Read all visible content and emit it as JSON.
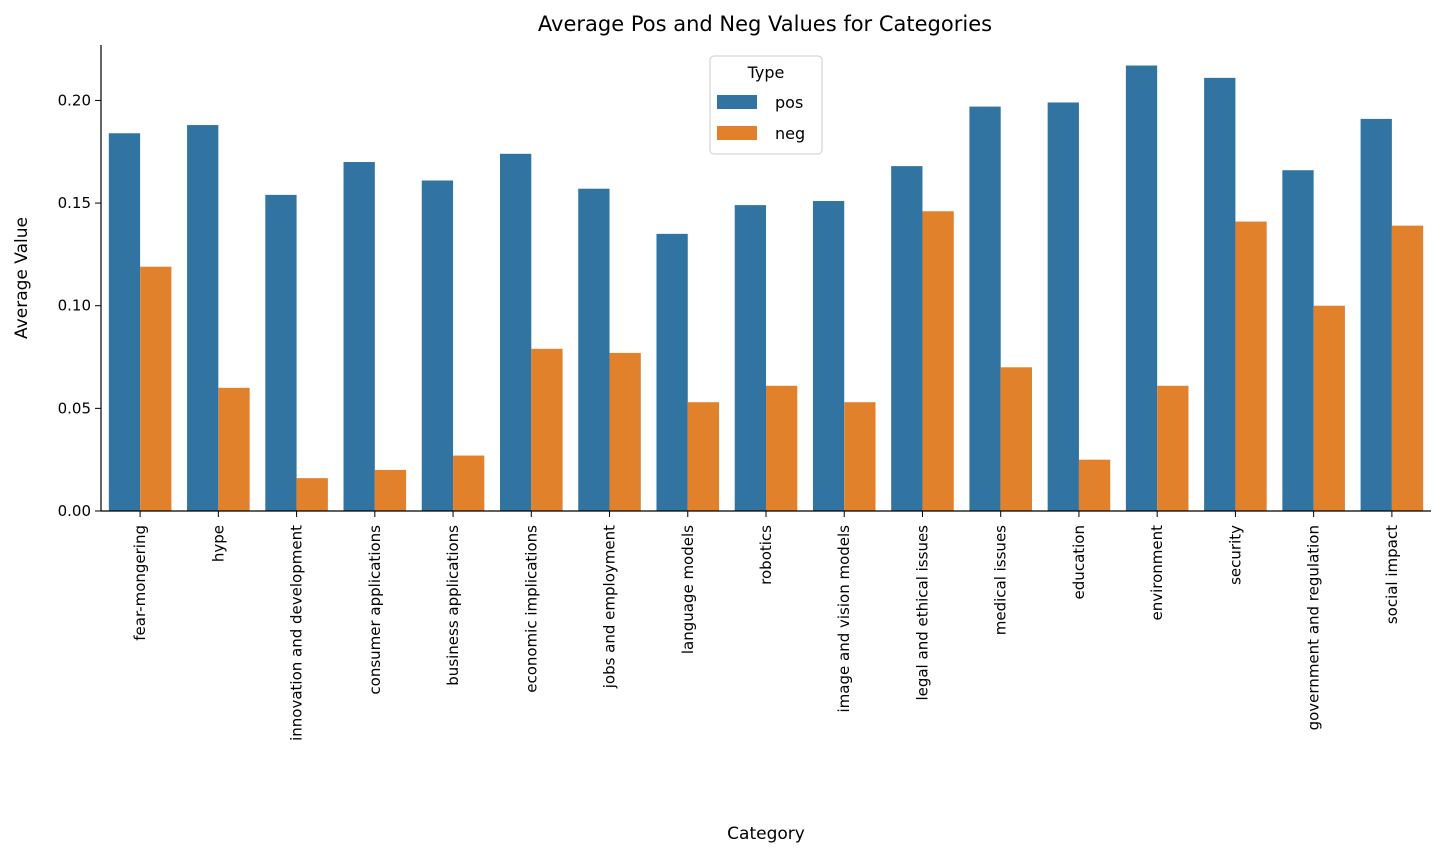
{
  "chart_data": {
    "type": "bar",
    "title": "Average Pos and Neg Values for Categories",
    "xlabel": "Category",
    "ylabel": "Average Value",
    "ylim": [
      0,
      0.227
    ],
    "yticks": [
      "0.00",
      "0.05",
      "0.10",
      "0.15",
      "0.20"
    ],
    "grid": false,
    "legend": {
      "title": "Type",
      "placement": "top-center"
    },
    "categories": [
      "fear-mongering",
      "hype",
      "innovation and development",
      "consumer applications",
      "business applications",
      "economic implications",
      "jobs and employment",
      "language models",
      "robotics",
      "image and vision models",
      "legal and ethical issues",
      "medical issues",
      "education",
      "environment",
      "security",
      "government and regulation",
      "social impact"
    ],
    "series": [
      {
        "name": "pos",
        "color": "#3274a1",
        "values": [
          0.184,
          0.188,
          0.154,
          0.17,
          0.161,
          0.174,
          0.157,
          0.135,
          0.149,
          0.151,
          0.168,
          0.197,
          0.199,
          0.217,
          0.211,
          0.166,
          0.191
        ]
      },
      {
        "name": "neg",
        "color": "#e1812c",
        "values": [
          0.119,
          0.06,
          0.016,
          0.02,
          0.027,
          0.079,
          0.077,
          0.053,
          0.061,
          0.053,
          0.146,
          0.07,
          0.025,
          0.061,
          0.141,
          0.1,
          0.139
        ]
      }
    ]
  }
}
